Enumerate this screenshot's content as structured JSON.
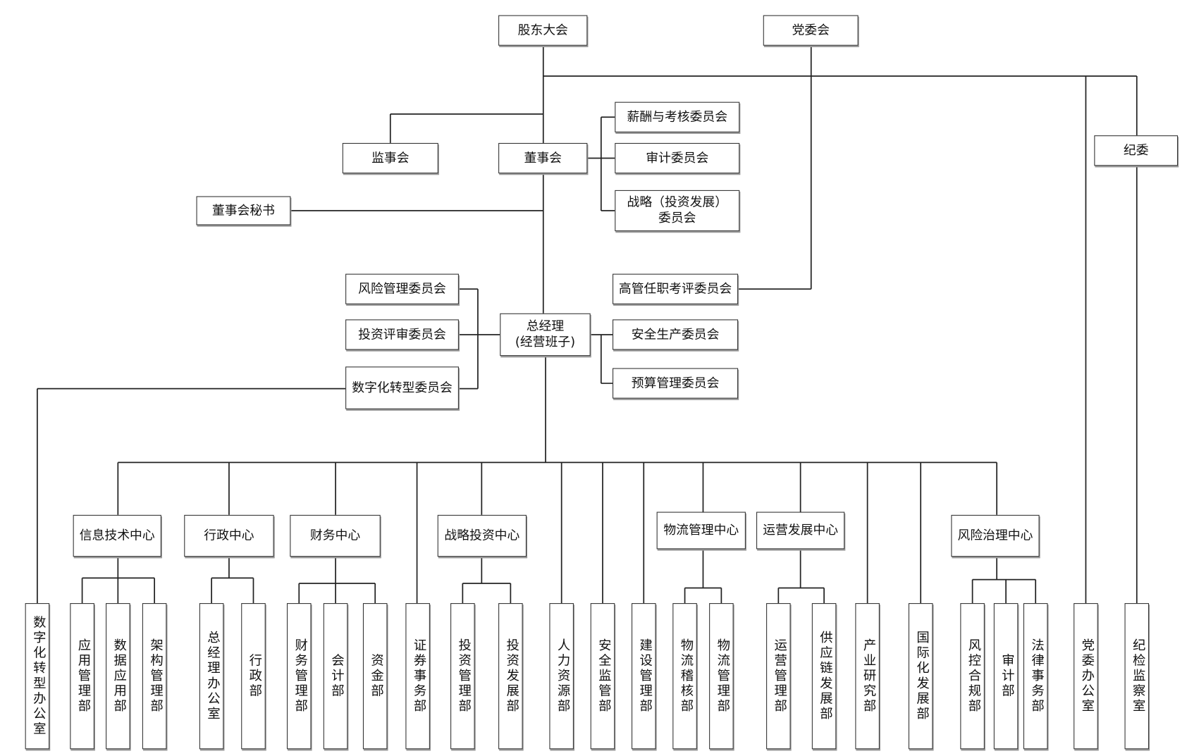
{
  "nodes": {
    "shareholders": "股东大会",
    "party_committee": "党委会",
    "supervisors": "监事会",
    "board": "董事会",
    "compensation_committee": "薪酬与考核委员会",
    "audit_committee": "审计委员会",
    "strategy_committee": "战略（投资发展）\n委员会",
    "discipline_committee": "纪委",
    "board_secretary": "董事会秘书",
    "risk_committee": "风险管理委员会",
    "investment_review_committee": "投资评审委员会",
    "digital_committee": "数字化转型委员会",
    "general_manager": "总经理\n(经营班子)",
    "exec_evaluation_committee": "高管任职考评委员会",
    "safety_committee": "安全生产委员会",
    "budget_committee": "预算管理委员会",
    "it_center": "信息技术中心",
    "admin_center": "行政中心",
    "finance_center": "财务中心",
    "strategy_invest_center": "战略投资中心",
    "logistics_center": "物流管理中心",
    "operations_center": "运营发展中心",
    "risk_center": "风险治理中心",
    "digital_office": "数字化转型办公室",
    "app_mgmt": "应用管理部",
    "data_app": "数据应用部",
    "arch_mgmt": "架构管理部",
    "gm_office": "总经理办公室",
    "admin_dept": "行政部",
    "fin_mgmt": "财务管理部",
    "accounting": "会计部",
    "treasury": "资金部",
    "securities": "证券事务部",
    "invest_mgmt": "投资管理部",
    "invest_dev": "投资发展部",
    "hr": "人力资源部",
    "safety_supervision": "安全监管部",
    "construction": "建设管理部",
    "logistics_audit": "物流稽核部",
    "logistics_mgmt": "物流管理部",
    "ops_mgmt": "运营管理部",
    "supply_chain": "供应链发展部",
    "industry_research": "产业研究部",
    "international": "国际化发展部",
    "risk_compliance": "风控合规部",
    "audit_dept": "审计部",
    "legal": "法律事务部",
    "party_office": "党委办公室",
    "discipline_office": "纪检监察室"
  }
}
